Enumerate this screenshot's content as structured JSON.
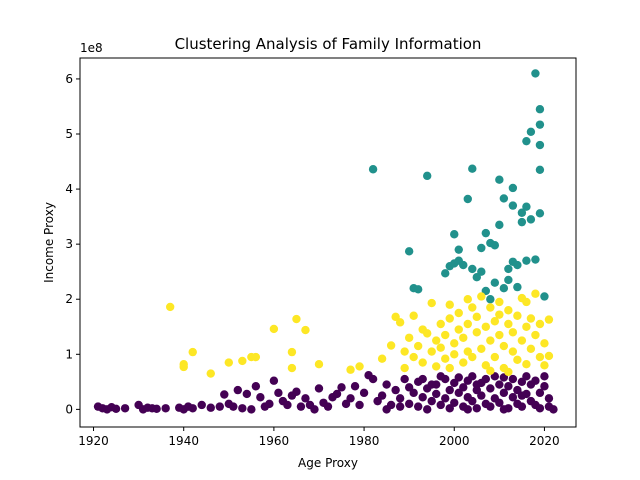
{
  "chart_data": {
    "type": "scatter",
    "title": "Clustering Analysis of Family Information",
    "xlabel": "Age Proxy",
    "ylabel": "Income Proxy",
    "y_offset_label": "1e8",
    "xlim": [
      1917,
      2027
    ],
    "ylim": [
      -0.32,
      6.38
    ],
    "y_multiplier": 100000000,
    "x_ticks": [
      1920,
      1940,
      1960,
      1980,
      2000,
      2020
    ],
    "y_ticks": [
      0,
      1,
      2,
      3,
      4,
      5,
      6
    ],
    "grid": false,
    "legend": "none",
    "series": [
      {
        "color": "#440154",
        "points": [
          [
            1921,
            0.05
          ],
          [
            1922,
            0.02
          ],
          [
            1923,
            0.0
          ],
          [
            1924,
            0.04
          ],
          [
            1925,
            0.01
          ],
          [
            1927,
            0.02
          ],
          [
            1930,
            0.08
          ],
          [
            1931,
            0.0
          ],
          [
            1932,
            0.03
          ],
          [
            1933,
            0.02
          ],
          [
            1934,
            0.01
          ],
          [
            1936,
            0.02
          ],
          [
            1939,
            0.03
          ],
          [
            1940,
            0.0
          ],
          [
            1941,
            0.05
          ],
          [
            1942,
            0.02
          ],
          [
            1944,
            0.08
          ],
          [
            1946,
            0.03
          ],
          [
            1948,
            0.05
          ],
          [
            1949,
            0.27
          ],
          [
            1950,
            0.1
          ],
          [
            1951,
            0.05
          ],
          [
            1952,
            0.35
          ],
          [
            1953,
            0.02
          ],
          [
            1954,
            0.28
          ],
          [
            1955,
            0.0
          ],
          [
            1956,
            0.42
          ],
          [
            1957,
            0.22
          ],
          [
            1958,
            0.05
          ],
          [
            1959,
            0.1
          ],
          [
            1960,
            0.52
          ],
          [
            1961,
            0.3
          ],
          [
            1962,
            0.15
          ],
          [
            1963,
            0.08
          ],
          [
            1964,
            0.25
          ],
          [
            1965,
            0.32
          ],
          [
            1966,
            0.05
          ],
          [
            1967,
            0.2
          ],
          [
            1968,
            0.08
          ],
          [
            1969,
            0.0
          ],
          [
            1970,
            0.38
          ],
          [
            1971,
            0.12
          ],
          [
            1972,
            0.05
          ],
          [
            1973,
            0.22
          ],
          [
            1974,
            0.28
          ],
          [
            1975,
            0.4
          ],
          [
            1976,
            0.1
          ],
          [
            1977,
            0.2
          ],
          [
            1978,
            0.42
          ],
          [
            1979,
            0.08
          ],
          [
            1980,
            0.3
          ],
          [
            1981,
            0.62
          ],
          [
            1982,
            0.55
          ],
          [
            1983,
            0.15
          ],
          [
            1984,
            0.25
          ],
          [
            1985,
            0.45
          ],
          [
            1986,
            0.08
          ],
          [
            1987,
            0.35
          ],
          [
            1988,
            0.2
          ],
          [
            1989,
            0.55
          ],
          [
            1990,
            0.1
          ],
          [
            1990,
            0.4
          ],
          [
            1991,
            0.3
          ],
          [
            1992,
            0.05
          ],
          [
            1992,
            0.5
          ],
          [
            1993,
            0.22
          ],
          [
            1994,
            0.38
          ],
          [
            1994,
            0.0
          ],
          [
            1995,
            0.15
          ],
          [
            1996,
            0.45
          ],
          [
            1996,
            0.28
          ],
          [
            1997,
            0.08
          ],
          [
            1998,
            0.55
          ],
          [
            1998,
            0.2
          ],
          [
            1999,
            0.35
          ],
          [
            1999,
            0.02
          ],
          [
            2000,
            0.48
          ],
          [
            2000,
            0.12
          ],
          [
            2001,
            0.3
          ],
          [
            2001,
            0.58
          ],
          [
            2002,
            0.05
          ],
          [
            2002,
            0.4
          ],
          [
            2003,
            0.22
          ],
          [
            2003,
            0.52
          ],
          [
            2004,
            0.15
          ],
          [
            2004,
            0.6
          ],
          [
            2005,
            0.35
          ],
          [
            2005,
            0.02
          ],
          [
            2006,
            0.48
          ],
          [
            2006,
            0.25
          ],
          [
            2007,
            0.1
          ],
          [
            2007,
            0.55
          ],
          [
            2008,
            0.38
          ],
          [
            2008,
            0.05
          ],
          [
            2009,
            0.2
          ],
          [
            2009,
            0.6
          ],
          [
            2010,
            0.45
          ],
          [
            2010,
            0.12
          ],
          [
            2011,
            0.3
          ],
          [
            2011,
            0.58
          ],
          [
            2012,
            0.02
          ],
          [
            2012,
            0.42
          ],
          [
            2013,
            0.22
          ],
          [
            2013,
            0.55
          ],
          [
            2014,
            0.1
          ],
          [
            2014,
            0.35
          ],
          [
            2015,
            0.5
          ],
          [
            2015,
            0.05
          ],
          [
            2016,
            0.28
          ],
          [
            2016,
            0.6
          ],
          [
            2017,
            0.15
          ],
          [
            2017,
            0.45
          ],
          [
            2018,
            0.08
          ],
          [
            2018,
            0.52
          ],
          [
            2019,
            0.3
          ],
          [
            2019,
            0.02
          ],
          [
            2020,
            0.42
          ],
          [
            2020,
            0.6
          ],
          [
            2021,
            0.2
          ],
          [
            2021,
            0.05
          ],
          [
            2022,
            0.0
          ],
          [
            1985,
            0.0
          ],
          [
            1988,
            0.05
          ],
          [
            1995,
            0.45
          ],
          [
            2003,
            0.0
          ],
          [
            2011,
            0.0
          ],
          [
            1997,
            0.6
          ],
          [
            2015,
            0.25
          ],
          [
            2005,
            0.45
          ],
          [
            1993,
            0.55
          ]
        ]
      },
      {
        "color": "#21918c",
        "points": [
          [
            1982,
            4.36
          ],
          [
            1990,
            2.87
          ],
          [
            1991,
            2.2
          ],
          [
            1992,
            2.18
          ],
          [
            1994,
            4.24
          ],
          [
            1998,
            2.47
          ],
          [
            1999,
            2.6
          ],
          [
            2000,
            2.65
          ],
          [
            2000,
            3.18
          ],
          [
            2001,
            2.7
          ],
          [
            2001,
            2.9
          ],
          [
            2002,
            2.62
          ],
          [
            2003,
            3.82
          ],
          [
            2004,
            4.37
          ],
          [
            2004,
            2.55
          ],
          [
            2005,
            2.4
          ],
          [
            2006,
            2.93
          ],
          [
            2006,
            2.5
          ],
          [
            2007,
            3.2
          ],
          [
            2007,
            2.15
          ],
          [
            2008,
            2.0
          ],
          [
            2008,
            3.02
          ],
          [
            2009,
            2.98
          ],
          [
            2009,
            2.3
          ],
          [
            2010,
            4.17
          ],
          [
            2010,
            3.35
          ],
          [
            2011,
            3.83
          ],
          [
            2011,
            2.2
          ],
          [
            2012,
            2.55
          ],
          [
            2012,
            2.35
          ],
          [
            2013,
            4.02
          ],
          [
            2013,
            3.7
          ],
          [
            2013,
            2.68
          ],
          [
            2014,
            2.62
          ],
          [
            2014,
            2.22
          ],
          [
            2015,
            3.57
          ],
          [
            2015,
            3.4
          ],
          [
            2016,
            3.68
          ],
          [
            2016,
            4.87
          ],
          [
            2016,
            2.7
          ],
          [
            2017,
            5.04
          ],
          [
            2017,
            3.45
          ],
          [
            2018,
            6.1
          ],
          [
            2018,
            2.72
          ],
          [
            2019,
            5.45
          ],
          [
            2019,
            4.8
          ],
          [
            2019,
            4.35
          ],
          [
            2019,
            3.56
          ],
          [
            2019,
            5.17
          ],
          [
            2020,
            2.05
          ]
        ]
      },
      {
        "color": "#fde725",
        "points": [
          [
            1937,
            1.86
          ],
          [
            1940,
            0.82
          ],
          [
            1940,
            0.77
          ],
          [
            1942,
            1.04
          ],
          [
            1946,
            0.65
          ],
          [
            1950,
            0.85
          ],
          [
            1953,
            0.88
          ],
          [
            1955,
            0.95
          ],
          [
            1956,
            0.95
          ],
          [
            1960,
            1.46
          ],
          [
            1964,
            1.04
          ],
          [
            1964,
            0.75
          ],
          [
            1965,
            1.64
          ],
          [
            1967,
            1.44
          ],
          [
            1970,
            0.82
          ],
          [
            1977,
            0.72
          ],
          [
            1979,
            0.78
          ],
          [
            1984,
            0.92
          ],
          [
            1986,
            1.16
          ],
          [
            1987,
            1.68
          ],
          [
            1988,
            1.58
          ],
          [
            1989,
            1.05
          ],
          [
            1989,
            0.75
          ],
          [
            1990,
            1.3
          ],
          [
            1991,
            0.95
          ],
          [
            1991,
            1.7
          ],
          [
            1992,
            1.15
          ],
          [
            1993,
            1.45
          ],
          [
            1993,
            0.85
          ],
          [
            1994,
            1.38
          ],
          [
            1995,
            1.93
          ],
          [
            1995,
            1.05
          ],
          [
            1996,
            0.78
          ],
          [
            1996,
            1.25
          ],
          [
            1997,
            1.12
          ],
          [
            1997,
            1.55
          ],
          [
            1998,
            0.92
          ],
          [
            1998,
            1.35
          ],
          [
            1999,
            1.65
          ],
          [
            1999,
            0.75
          ],
          [
            2000,
            1.2
          ],
          [
            2000,
            1.0
          ],
          [
            2001,
            1.45
          ],
          [
            2001,
            1.75
          ],
          [
            2002,
            0.85
          ],
          [
            2002,
            1.3
          ],
          [
            2003,
            1.55
          ],
          [
            2003,
            1.05
          ],
          [
            2004,
            1.85
          ],
          [
            2004,
            0.95
          ],
          [
            2005,
            1.4
          ],
          [
            2005,
            1.68
          ],
          [
            2006,
            1.1
          ],
          [
            2006,
            2.05
          ],
          [
            2007,
            0.8
          ],
          [
            2007,
            1.5
          ],
          [
            2008,
            1.25
          ],
          [
            2008,
            1.85
          ],
          [
            2009,
            0.95
          ],
          [
            2009,
            1.6
          ],
          [
            2010,
            1.35
          ],
          [
            2010,
            1.95
          ],
          [
            2011,
            1.15
          ],
          [
            2011,
            0.75
          ],
          [
            2012,
            1.55
          ],
          [
            2012,
            1.8
          ],
          [
            2013,
            1.05
          ],
          [
            2013,
            1.4
          ],
          [
            2014,
            0.9
          ],
          [
            2014,
            1.7
          ],
          [
            2015,
            1.25
          ],
          [
            2015,
            2.02
          ],
          [
            2016,
            1.5
          ],
          [
            2016,
            0.82
          ],
          [
            2017,
            1.65
          ],
          [
            2017,
            1.1
          ],
          [
            2018,
            2.1
          ],
          [
            2018,
            1.35
          ],
          [
            2019,
            0.95
          ],
          [
            2019,
            1.55
          ],
          [
            2020,
            0.8
          ],
          [
            2020,
            1.2
          ],
          [
            2021,
            1.63
          ],
          [
            2021,
            0.97
          ],
          [
            2008,
            0.7
          ],
          [
            2012,
            0.68
          ],
          [
            1999,
            1.9
          ],
          [
            2003,
            2.0
          ],
          [
            2010,
            1.72
          ],
          [
            2016,
            1.95
          ]
        ]
      }
    ]
  }
}
